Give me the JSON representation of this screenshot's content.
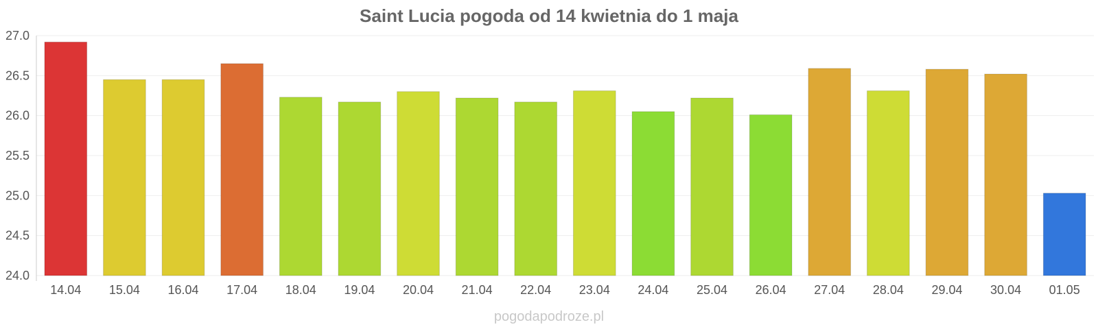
{
  "chart_data": {
    "type": "bar",
    "title": "Saint Lucia pogoda od 14 kwietnia do 1 maja",
    "xlabel": "",
    "ylabel": "",
    "ylim": [
      24.0,
      27.0
    ],
    "y_ticks": [
      "24.0",
      "24.5",
      "25.0",
      "25.5",
      "26.0",
      "26.5",
      "27.0"
    ],
    "grid": true,
    "legend": "none",
    "categories": [
      "14.04",
      "15.04",
      "16.04",
      "17.04",
      "18.04",
      "19.04",
      "20.04",
      "21.04",
      "22.04",
      "23.04",
      "24.04",
      "25.04",
      "26.04",
      "27.04",
      "28.04",
      "29.04",
      "30.04",
      "01.05"
    ],
    "values": [
      26.92,
      26.45,
      26.45,
      26.65,
      26.23,
      26.17,
      26.3,
      26.22,
      26.17,
      26.31,
      26.05,
      26.22,
      26.01,
      26.59,
      26.31,
      26.58,
      26.52,
      25.03
    ],
    "bar_colors": [
      "#dc3535",
      "#ddcb30",
      "#ddcb30",
      "#dc6d33",
      "#add832",
      "#add832",
      "#cedc35",
      "#add832",
      "#add832",
      "#cedc35",
      "#8cdc34",
      "#add832",
      "#8cdc34",
      "#dda835",
      "#cedc35",
      "#dda835",
      "#dda835",
      "#3277dc"
    ]
  },
  "watermark": "pogodapodroze.pl"
}
